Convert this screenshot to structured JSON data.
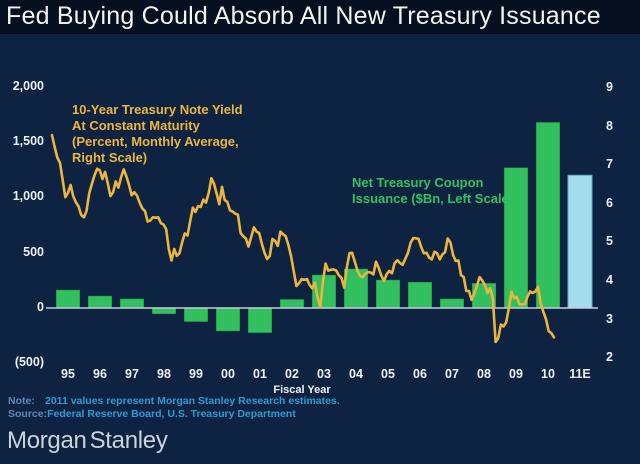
{
  "title": "Fed Buying Could Absorb All New Treasury Issuance",
  "annotations": {
    "line_label": "10-Year Treasury Note Yield\nAt Constant Maturity\n(Percent, Monthly Average,\nRight Scale)",
    "bar_label": "Net Treasury Coupon\nIssuance ($Bn, Left Scale)"
  },
  "chart_data": {
    "type": "combo-bar-line",
    "x_axis_label": "Fiscal Year",
    "categories": [
      "95",
      "96",
      "97",
      "98",
      "99",
      "00",
      "01",
      "02",
      "03",
      "04",
      "05",
      "06",
      "07",
      "08",
      "09",
      "10",
      "11E"
    ],
    "bar_series": {
      "name": "Net Treasury Coupon Issuance ($Bn, Left Scale)",
      "values": [
        165,
        110,
        85,
        -55,
        -125,
        -210,
        -225,
        80,
        300,
        355,
        255,
        235,
        85,
        225,
        1270,
        1680,
        1200
      ],
      "estimate_category": "11E"
    },
    "line_series": {
      "name": "10-Year Treasury Note Yield At Constant Maturity (Percent, Monthly Average, Right Scale)",
      "frequency": "monthly",
      "start": "1995-01",
      "end": "2010-10",
      "values": [
        7.78,
        7.47,
        7.2,
        7.06,
        6.63,
        6.17,
        6.28,
        6.49,
        6.2,
        6.04,
        5.93,
        5.71,
        5.65,
        5.81,
        6.27,
        6.51,
        6.74,
        6.91,
        6.87,
        6.64,
        6.83,
        6.53,
        6.2,
        6.3,
        6.58,
        6.42,
        6.69,
        6.89,
        6.71,
        6.49,
        6.22,
        6.3,
        6.21,
        6.03,
        5.88,
        5.81,
        5.54,
        5.57,
        5.65,
        5.64,
        5.65,
        5.5,
        5.46,
        5.34,
        4.81,
        4.53,
        4.83,
        4.65,
        4.72,
        5.0,
        5.23,
        5.18,
        5.54,
        5.9,
        5.79,
        5.94,
        5.92,
        6.11,
        6.03,
        6.28,
        6.66,
        6.52,
        6.26,
        5.99,
        6.44,
        6.1,
        6.05,
        5.83,
        5.8,
        5.74,
        5.72,
        5.24,
        5.16,
        5.1,
        4.89,
        5.14,
        5.39,
        5.28,
        5.24,
        4.97,
        4.73,
        4.57,
        4.65,
        5.09,
        5.04,
        4.91,
        5.28,
        5.21,
        5.16,
        4.93,
        4.65,
        4.26,
        3.87,
        3.94,
        4.05,
        4.03,
        4.05,
        3.9,
        3.81,
        3.96,
        3.57,
        3.33,
        3.98,
        4.45,
        4.27,
        4.29,
        4.3,
        4.27,
        4.15,
        4.08,
        3.83,
        4.35,
        4.72,
        4.73,
        4.5,
        4.28,
        4.13,
        4.1,
        4.19,
        4.23,
        4.22,
        4.17,
        4.5,
        4.34,
        4.14,
        4.0,
        4.18,
        4.26,
        4.2,
        4.46,
        4.54,
        4.47,
        4.42,
        4.57,
        4.72,
        4.99,
        5.11,
        5.11,
        5.09,
        4.88,
        4.72,
        4.73,
        4.6,
        4.56,
        4.76,
        4.72,
        4.56,
        4.69,
        4.75,
        5.1,
        5.0,
        4.67,
        4.52,
        4.53,
        4.15,
        4.1,
        3.74,
        3.74,
        3.51,
        3.68,
        3.88,
        4.1,
        4.01,
        3.89,
        3.69,
        3.81,
        3.53,
        2.42,
        2.52,
        2.87,
        2.82,
        2.93,
        3.29,
        3.72,
        3.56,
        3.59,
        3.4,
        3.39,
        3.4,
        3.59,
        3.73,
        3.69,
        3.73,
        3.85,
        3.42,
        3.2,
        3.01,
        2.7,
        2.65,
        2.54
      ]
    },
    "left_axis": {
      "ticks": [
        "2,000",
        "1,500",
        "1,000",
        "500",
        "0",
        "(500)"
      ],
      "min": -500,
      "max": 2000
    },
    "right_axis": {
      "ticks": [
        "9",
        "8",
        "7",
        "6",
        "5",
        "4",
        "3",
        "2"
      ],
      "min": 2,
      "max": 9
    },
    "grid": "off",
    "legend": "inline-annotations"
  },
  "footer": {
    "note_label": "Note:",
    "note_text": "2011 values represent Morgan Stanley Research estimates.",
    "source_label": "Source:",
    "source_text": "Federal Reserve Board, U.S. Treasury Department"
  },
  "logo": {
    "part1": "Morgan",
    "part2": "Stanley"
  },
  "colors": {
    "background": "#0e2342",
    "title_band": "#050f1f",
    "bar_actual": "#32bf5e",
    "bar_estimate": "#a3dcec",
    "line": "#ecb63c",
    "zero_line": "#c8d0d8",
    "axis_text": "#eef1f5",
    "note_text": "#2e9ad6"
  }
}
